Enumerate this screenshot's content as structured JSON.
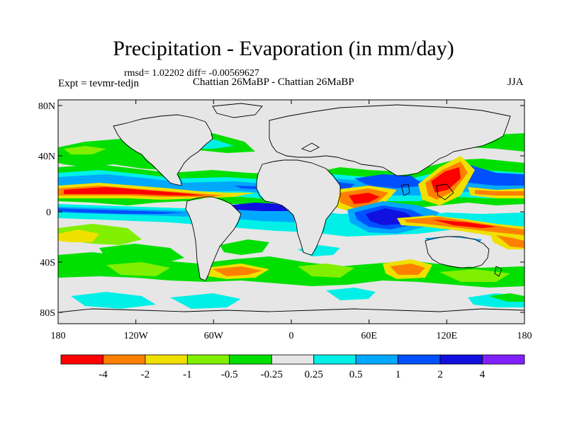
{
  "title": "Precipitation - Evaporation (in mm/day)",
  "stats": "rmsd= 1.02202  diff= -0.00569627",
  "experiment": "Expt = tevmr-tedjn",
  "case": "Chattian  26MaBP - Chattian  26MaBP",
  "season": "JJA",
  "lat_ticks": [
    "80N",
    "40N",
    "0",
    "40S",
    "80S"
  ],
  "lon_ticks": [
    "180",
    "120W",
    "60W",
    "0",
    "60E",
    "120E",
    "180"
  ],
  "colorbar": {
    "labels": [
      "-4",
      "-2",
      "-1",
      "-0.5",
      "-0.25",
      "0.25",
      "0.5",
      "1",
      "2",
      "4"
    ],
    "colors": [
      "#ff0000",
      "#ff8000",
      "#f0e000",
      "#80f000",
      "#00e000",
      "#e6e6e6",
      "#00f0e8",
      "#00a8ff",
      "#0050ff",
      "#1010e0",
      "#8020ff"
    ]
  },
  "colors": {
    "land_background": "#e6e6e6",
    "coastline": "#000000"
  }
}
